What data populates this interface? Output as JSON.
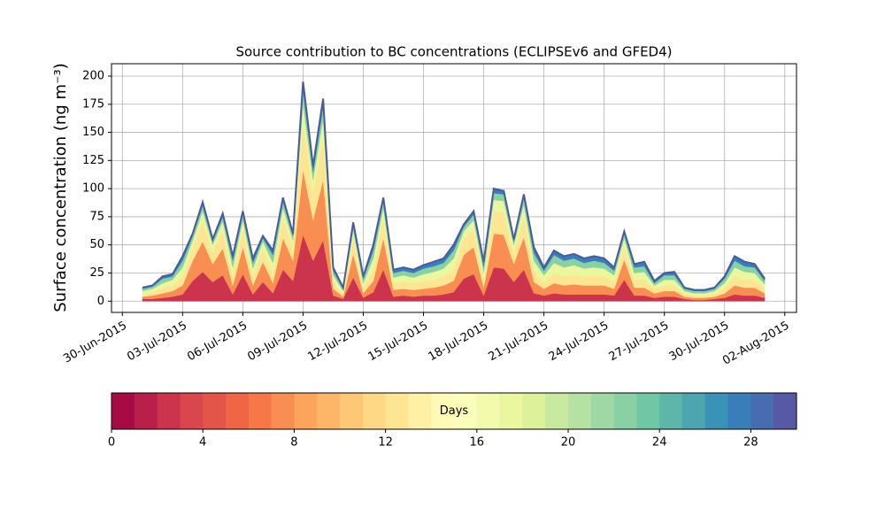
{
  "chart_data": {
    "type": "stacked_area",
    "title": "Source contribution to BC concentrations (ECLIPSEv6 and GFED4)",
    "ylabel": "Surface concentration (ng m⁻³)",
    "x": [
      "2015-07-01T00:00",
      "2015-07-01T12:00",
      "2015-07-02T00:00",
      "2015-07-02T12:00",
      "2015-07-03T00:00",
      "2015-07-03T12:00",
      "2015-07-04T00:00",
      "2015-07-04T12:00",
      "2015-07-05T00:00",
      "2015-07-05T12:00",
      "2015-07-06T00:00",
      "2015-07-06T12:00",
      "2015-07-07T00:00",
      "2015-07-07T12:00",
      "2015-07-08T00:00",
      "2015-07-08T12:00",
      "2015-07-09T00:00",
      "2015-07-09T12:00",
      "2015-07-10T00:00",
      "2015-07-10T12:00",
      "2015-07-11T00:00",
      "2015-07-11T12:00",
      "2015-07-12T00:00",
      "2015-07-12T12:00",
      "2015-07-13T00:00",
      "2015-07-13T12:00",
      "2015-07-14T00:00",
      "2015-07-14T12:00",
      "2015-07-15T00:00",
      "2015-07-15T12:00",
      "2015-07-16T00:00",
      "2015-07-16T12:00",
      "2015-07-17T00:00",
      "2015-07-17T12:00",
      "2015-07-18T00:00",
      "2015-07-18T12:00",
      "2015-07-19T00:00",
      "2015-07-19T12:00",
      "2015-07-20T00:00",
      "2015-07-20T12:00",
      "2015-07-21T00:00",
      "2015-07-21T12:00",
      "2015-07-22T00:00",
      "2015-07-22T12:00",
      "2015-07-23T00:00",
      "2015-07-23T12:00",
      "2015-07-24T00:00",
      "2015-07-24T12:00",
      "2015-07-25T00:00",
      "2015-07-25T12:00",
      "2015-07-26T00:00",
      "2015-07-26T12:00",
      "2015-07-27T00:00",
      "2015-07-27T12:00",
      "2015-07-28T00:00",
      "2015-07-28T12:00",
      "2015-07-29T00:00",
      "2015-07-29T12:00",
      "2015-07-30T00:00",
      "2015-07-30T12:00",
      "2015-07-31T00:00",
      "2015-07-31T12:00",
      "2015-08-01T00:00"
    ],
    "series": [
      {
        "color": "#cc344d",
        "values": [
          2,
          2,
          3,
          4,
          6,
          18,
          26,
          17,
          23,
          6,
          24,
          6,
          17,
          7,
          28,
          18,
          59,
          36,
          54,
          5,
          2,
          21,
          3,
          8,
          28,
          4,
          5,
          4,
          5,
          5,
          6,
          8,
          20,
          24,
          5,
          30,
          29,
          17,
          28,
          7,
          5,
          7,
          6,
          6,
          6,
          6,
          6,
          5,
          19,
          5,
          5,
          3,
          4,
          4,
          2,
          1,
          1,
          2,
          3,
          6,
          5,
          5,
          3
        ]
      },
      {
        "color": "#f98e52",
        "values": [
          2,
          3,
          4,
          5,
          8,
          18,
          27,
          16,
          24,
          8,
          24,
          8,
          18,
          9,
          28,
          18,
          58,
          36,
          54,
          6,
          2,
          21,
          4,
          10,
          28,
          6,
          6,
          6,
          6,
          7,
          8,
          10,
          21,
          24,
          7,
          30,
          30,
          16,
          29,
          10,
          6,
          9,
          8,
          9,
          8,
          8,
          8,
          6,
          18,
          7,
          7,
          4,
          5,
          5,
          2,
          2,
          2,
          2,
          4,
          8,
          7,
          7,
          4
        ]
      },
      {
        "color": "#fee594",
        "values": [
          2,
          3,
          5,
          5,
          8,
          12,
          18,
          11,
          16,
          8,
          16,
          8,
          12,
          9,
          18,
          12,
          39,
          24,
          36,
          6,
          2,
          14,
          5,
          10,
          18,
          6,
          6,
          6,
          7,
          7,
          8,
          10,
          14,
          16,
          7,
          20,
          20,
          11,
          19,
          10,
          6,
          9,
          8,
          8,
          8,
          8,
          8,
          6,
          12,
          7,
          7,
          4,
          5,
          5,
          2,
          2,
          2,
          2,
          5,
          8,
          7,
          7,
          4
        ]
      },
      {
        "color": "#eaf79f",
        "values": [
          3,
          3,
          4,
          5,
          8,
          6,
          9,
          6,
          8,
          8,
          8,
          7,
          6,
          9,
          9,
          6,
          20,
          12,
          18,
          6,
          3,
          7,
          4,
          10,
          9,
          5,
          6,
          5,
          6,
          7,
          7,
          10,
          7,
          8,
          7,
          10,
          10,
          6,
          10,
          9,
          6,
          9,
          8,
          9,
          7,
          8,
          7,
          6,
          7,
          6,
          7,
          3,
          5,
          5,
          3,
          2,
          2,
          3,
          4,
          8,
          7,
          6,
          4
        ]
      },
      {
        "color": "#89d0a5",
        "values": [
          2,
          2,
          4,
          3,
          6,
          4,
          5,
          3,
          4,
          6,
          5,
          5,
          3,
          7,
          6,
          4,
          12,
          7,
          11,
          4,
          2,
          4,
          4,
          7,
          6,
          4,
          4,
          4,
          5,
          5,
          5,
          7,
          4,
          5,
          5,
          6,
          6,
          3,
          6,
          7,
          4,
          7,
          6,
          6,
          5,
          6,
          5,
          4,
          4,
          5,
          5,
          2,
          4,
          4,
          2,
          2,
          2,
          2,
          4,
          6,
          5,
          5,
          3
        ]
      },
      {
        "color": "#397eb8",
        "values": [
          1,
          1,
          2,
          2,
          4,
          2,
          3,
          2,
          3,
          4,
          3,
          4,
          2,
          4,
          3,
          2,
          7,
          5,
          7,
          3,
          1,
          3,
          2,
          5,
          3,
          3,
          3,
          3,
          3,
          4,
          4,
          5,
          2,
          3,
          4,
          4,
          3,
          2,
          3,
          5,
          3,
          4,
          4,
          4,
          4,
          4,
          4,
          3,
          2,
          3,
          4,
          2,
          2,
          3,
          1,
          1,
          1,
          1,
          2,
          4,
          4,
          3,
          2
        ]
      }
    ],
    "edge_color": "#4a5a9c",
    "xlim": [
      "2015-06-29T11:00",
      "2015-08-02T14:00"
    ],
    "xticks": [
      {
        "value": "2015-06-30",
        "label": "30-Jun-2015"
      },
      {
        "value": "2015-07-03",
        "label": "03-Jul-2015"
      },
      {
        "value": "2015-07-06",
        "label": "06-Jul-2015"
      },
      {
        "value": "2015-07-09",
        "label": "09-Jul-2015"
      },
      {
        "value": "2015-07-12",
        "label": "12-Jul-2015"
      },
      {
        "value": "2015-07-15",
        "label": "15-Jul-2015"
      },
      {
        "value": "2015-07-18",
        "label": "18-Jul-2015"
      },
      {
        "value": "2015-07-21",
        "label": "21-Jul-2015"
      },
      {
        "value": "2015-07-24",
        "label": "24-Jul-2015"
      },
      {
        "value": "2015-07-27",
        "label": "27-Jul-2015"
      },
      {
        "value": "2015-07-30",
        "label": "30-Jul-2015"
      },
      {
        "value": "2015-08-02",
        "label": "02-Aug-2015"
      }
    ],
    "ylim": [
      -10,
      211
    ],
    "yticks": [
      0,
      25,
      50,
      75,
      100,
      125,
      150,
      175,
      200
    ],
    "grid": true,
    "colorbar": {
      "label": "Days",
      "lim": [
        0,
        30
      ],
      "ticks": [
        0,
        4,
        8,
        12,
        16,
        20,
        24,
        28
      ],
      "colors": [
        "#a70b44",
        "#b91f48",
        "#cc344d",
        "#da464d",
        "#e45549",
        "#ef6545",
        "#f67848",
        "#f98e52",
        "#fca35c",
        "#fdb668",
        "#fec776",
        "#fed884",
        "#fee594",
        "#fff0a5",
        "#fffab6",
        "#fbfdba",
        "#f3faac",
        "#eaf79f",
        "#dcf19a",
        "#c9e99e",
        "#b5e1a2",
        "#9fd8a4",
        "#89d0a5",
        "#71c7a5",
        "#5db6a9",
        "#4ca5b1",
        "#3b92b9",
        "#397eb8",
        "#486cb0",
        "#5759a7"
      ]
    }
  }
}
